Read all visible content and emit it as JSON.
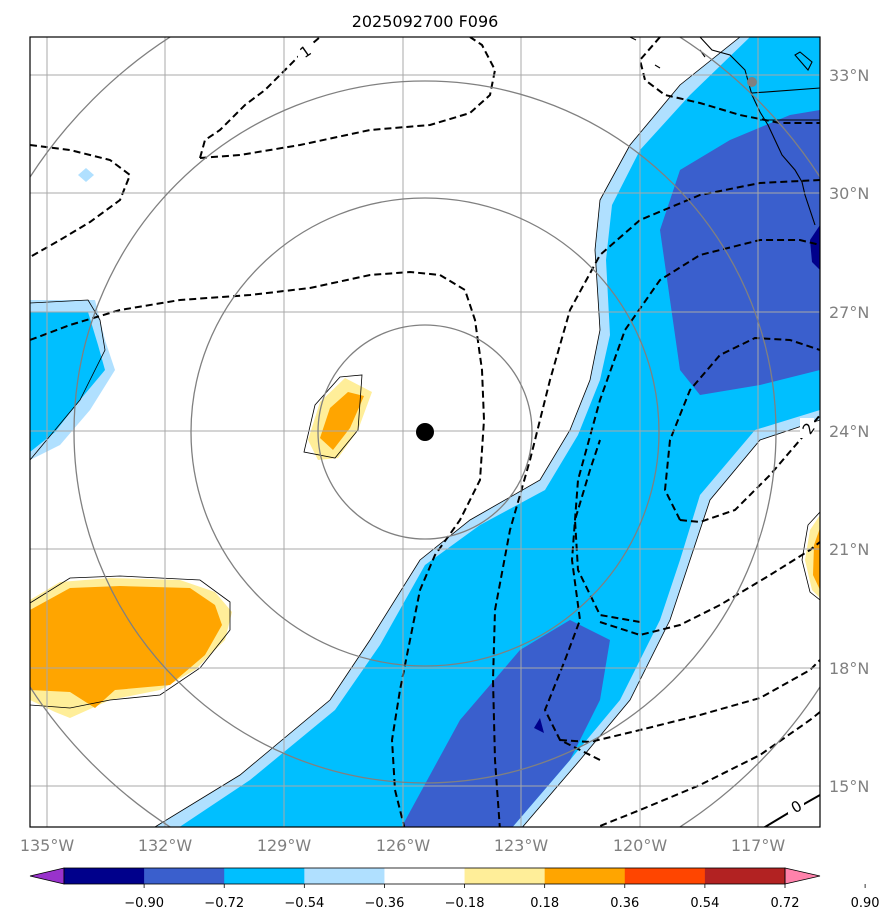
{
  "title": "2025092700 F096",
  "map": {
    "lon_ticks": [
      "135°W",
      "132°W",
      "129°W",
      "126°W",
      "123°W",
      "120°W",
      "117°W"
    ],
    "lat_ticks": [
      "33°N",
      "30°N",
      "27°N",
      "24°N",
      "21°N",
      "18°N",
      "15°N"
    ],
    "storm_center": {
      "lon": "125.9°W",
      "lat": "24.0°N"
    },
    "range_rings": 4,
    "contour_labels": [
      "1",
      "2",
      "0"
    ]
  },
  "colorbar": {
    "levels": [
      "−0.90",
      "−0.72",
      "−0.54",
      "−0.36",
      "−0.18",
      "0.18",
      "0.36",
      "0.54",
      "0.72",
      "0.90"
    ],
    "colors": [
      "#9932cc",
      "#00008b",
      "#3a5fcd",
      "#00bfff",
      "#b0e0ff",
      "#ffffff",
      "#ffee99",
      "#ffa500",
      "#ff4500",
      "#b22222",
      "#ff82ab"
    ]
  }
}
